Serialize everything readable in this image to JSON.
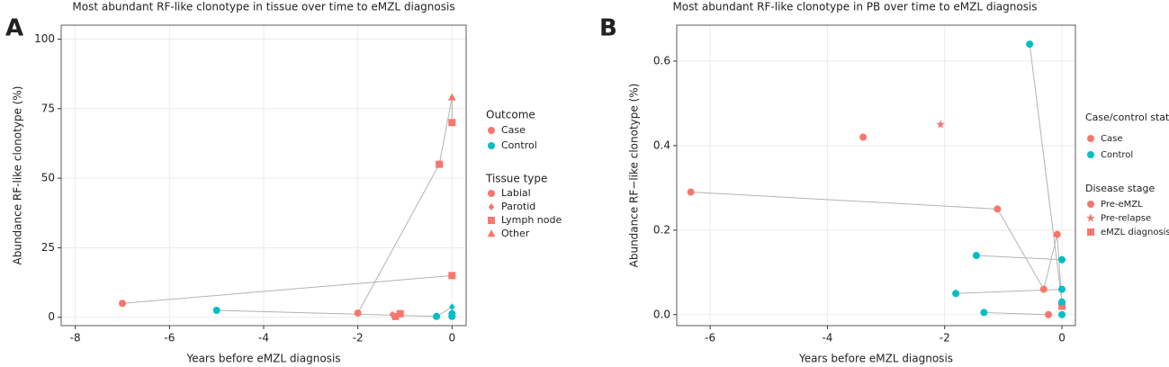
{
  "chart_data": [
    {
      "type": "scatter",
      "panel_label": "A",
      "title": "Most abundant RF-like clonotype in tissue over time to eMZL diagnosis",
      "xlabel": "Years before eMZL diagnosis",
      "ylabel": "Abundance RF-like clonotype (%)",
      "xlim": [
        -8.3,
        0.3
      ],
      "ylim": [
        -3,
        105
      ],
      "xticks": [
        -8,
        -6,
        -4,
        -2,
        0
      ],
      "yticks": [
        0,
        25,
        50,
        75,
        100
      ],
      "grid": true,
      "color_legend": {
        "title": "Outcome"
      },
      "shape_legend": {
        "title": "Tissue type",
        "items": [
          {
            "name": "Labial",
            "shape": "circle"
          },
          {
            "name": "Parotid",
            "shape": "diamond"
          },
          {
            "name": "Lymph node",
            "shape": "square"
          },
          {
            "name": "Other",
            "shape": "triangle"
          }
        ]
      },
      "series": [
        {
          "name": "Case",
          "color": "#F8766D",
          "x": [
            -7,
            -2,
            -1.27,
            -1.2,
            -1.1,
            -0.27,
            0,
            0,
            0
          ],
          "y": [
            5,
            1.5,
            1,
            0.3,
            1.3,
            55,
            70,
            79,
            15
          ],
          "kind": [
            "Labial",
            "Labial",
            "Parotid",
            "Lymph node",
            "Lymph node",
            "Lymph node",
            "Lymph node",
            "Other",
            "Lymph node"
          ]
        },
        {
          "name": "Control",
          "color": "#00BFC4",
          "x": [
            -5,
            -0.33,
            0,
            0,
            0
          ],
          "y": [
            2.5,
            0.3,
            3.7,
            1.3,
            0.3
          ],
          "kind": [
            "Labial",
            "Labial",
            "Parotid",
            "Labial",
            "Labial"
          ]
        }
      ],
      "lines": [
        {
          "x": [
            -7,
            0
          ],
          "y": [
            5,
            15
          ]
        },
        {
          "x": [
            -2,
            -0.27,
            0,
            0
          ],
          "y": [
            1.5,
            55,
            79,
            70
          ]
        },
        {
          "x": [
            -5,
            -0.33
          ],
          "y": [
            2.5,
            0.3
          ]
        },
        {
          "x": [
            -0.33,
            0
          ],
          "y": [
            0.3,
            3.7
          ]
        }
      ]
    },
    {
      "type": "scatter",
      "panel_label": "B",
      "title": "Most abundant RF-like clonotype in PB over time to eMZL diagnosis",
      "xlabel": "Years before eMZL diagnosis",
      "ylabel": "Abundance  RF−like clonotype (%)",
      "xlim": [
        -6.57,
        0.23
      ],
      "ylim": [
        -0.026,
        0.685
      ],
      "xticks": [
        -6,
        -4,
        -2,
        0
      ],
      "yticks": [
        {
          "value": 0,
          "label": "0.0"
        },
        0.2,
        0.4,
        0.6
      ],
      "grid": true,
      "color_legend": {
        "title": "Case/control status"
      },
      "shape_legend": {
        "title": "Disease stage",
        "items": [
          {
            "name": "Pre-eMZL",
            "shape": "circle"
          },
          {
            "name": "Pre-relapse",
            "shape": "star"
          },
          {
            "name": "eMZL diagnosis",
            "shape": "square"
          }
        ]
      },
      "series": [
        {
          "name": "Case",
          "color": "#F8766D",
          "x": [
            -6.33,
            -1.1,
            -3.39,
            -2.07,
            -0.08,
            -0.31,
            0,
            -0.23
          ],
          "y": [
            0.29,
            0.25,
            0.42,
            0.45,
            0.19,
            0.06,
            0.02,
            0
          ],
          "kind": [
            "Pre-eMZL",
            "Pre-eMZL",
            "Pre-eMZL",
            "Pre-relapse",
            "Pre-eMZL",
            "Pre-eMZL",
            "eMZL diagnosis",
            "Pre-eMZL"
          ]
        },
        {
          "name": "Control",
          "color": "#00BFC4",
          "x": [
            -0.55,
            -1.46,
            0,
            0,
            -1.81,
            0,
            -1.33,
            0
          ],
          "y": [
            0.64,
            0.14,
            0.13,
            0.06,
            0.05,
            0.03,
            0.005,
            0
          ],
          "kind": [
            "Pre-eMZL",
            "Pre-eMZL",
            "Pre-eMZL",
            "Pre-eMZL",
            "Pre-eMZL",
            "Pre-eMZL",
            "Pre-eMZL",
            "Pre-eMZL"
          ]
        }
      ],
      "lines": [
        {
          "x": [
            -6.33,
            -1.1,
            -0.31,
            -0.08,
            0
          ],
          "y": [
            0.29,
            0.25,
            0.06,
            0.19,
            0.02
          ]
        },
        {
          "x": [
            -0.55,
            0
          ],
          "y": [
            0.64,
            0.03
          ]
        },
        {
          "x": [
            -1.46,
            0
          ],
          "y": [
            0.14,
            0.13
          ]
        },
        {
          "x": [
            -1.81,
            0
          ],
          "y": [
            0.05,
            0.06
          ]
        },
        {
          "x": [
            -1.33,
            -0.23
          ],
          "y": [
            0.005,
            0
          ]
        }
      ]
    }
  ]
}
